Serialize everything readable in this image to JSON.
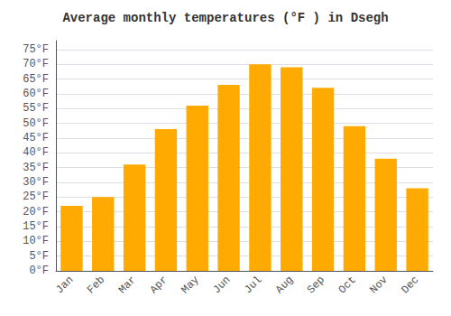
{
  "chart_data": {
    "type": "bar",
    "title": "Average monthly temperatures (°F ) in Dsegh",
    "categories": [
      "Jan",
      "Feb",
      "Mar",
      "Apr",
      "May",
      "Jun",
      "Jul",
      "Aug",
      "Sep",
      "Oct",
      "Nov",
      "Dec"
    ],
    "values": [
      22,
      25,
      36,
      48,
      56,
      63,
      70,
      69,
      62,
      49,
      38,
      28
    ],
    "color": "#FFAA00",
    "ylim": [
      0,
      78
    ],
    "yticks": [
      {
        "value": 0,
        "label": "0°F"
      },
      {
        "value": 5,
        "label": "5°F"
      },
      {
        "value": 10,
        "label": "10°F"
      },
      {
        "value": 15,
        "label": "15°F"
      },
      {
        "value": 20,
        "label": "20°F"
      },
      {
        "value": 25,
        "label": "25°F"
      },
      {
        "value": 30,
        "label": "30°F"
      },
      {
        "value": 35,
        "label": "35°F"
      },
      {
        "value": 40,
        "label": "40°F"
      },
      {
        "value": 45,
        "label": "45°F"
      },
      {
        "value": 50,
        "label": "50°F"
      },
      {
        "value": 55,
        "label": "55°F"
      },
      {
        "value": 60,
        "label": "60°F"
      },
      {
        "value": 65,
        "label": "65°F"
      },
      {
        "value": 70,
        "label": "70°F"
      },
      {
        "value": 75,
        "label": "75°F"
      }
    ],
    "grid": true
  }
}
